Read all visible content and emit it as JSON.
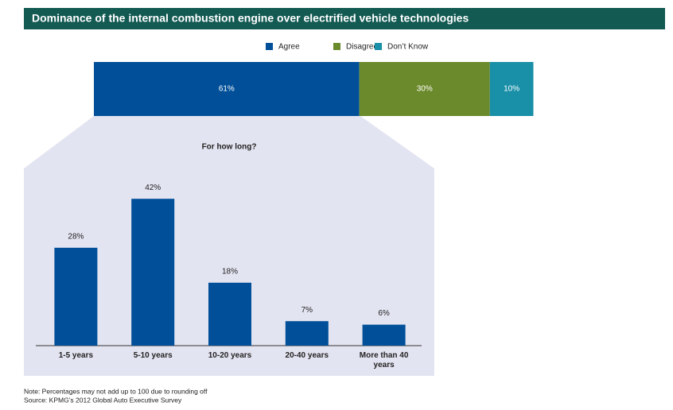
{
  "title": "Dominance of the internal combustion engine over electrified vehicle technologies",
  "chart_data": [
    {
      "type": "stacked_bar",
      "series": [
        {
          "name": "Agree",
          "color": "#004f98",
          "values": [
            61
          ],
          "value_labels": [
            "61%"
          ]
        },
        {
          "name": "Disagreee",
          "color": "#6b8a2b",
          "values": [
            30
          ],
          "value_labels": [
            "30%"
          ]
        },
        {
          "name": "Don’t Know",
          "color": "#1a8fa8",
          "values": [
            10
          ],
          "value_labels": [
            "10%"
          ]
        }
      ]
    },
    {
      "type": "bar",
      "title": "For how long?",
      "categories": [
        "1-5 years",
        "5-10 years",
        "10-20 years",
        "20-40 years",
        "More than 40 years"
      ],
      "values": [
        28,
        42,
        18,
        7,
        6
      ],
      "value_labels": [
        "28%",
        "42%",
        "18%",
        "7%",
        "6%"
      ],
      "color": "#004f98"
    }
  ],
  "notes": [
    "Note: Percentages may not add up to 100 due to rounding off",
    "Source: KPMG’s 2012 Global Auto Executive Survey"
  ]
}
